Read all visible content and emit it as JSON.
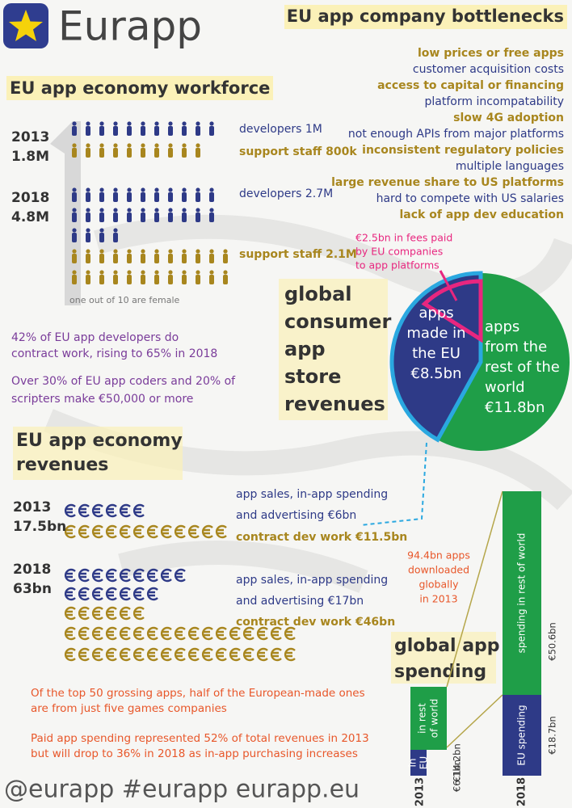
{
  "header": {
    "logo_text": "Eurapp"
  },
  "bottlenecks": {
    "title": "EU app company bottlenecks",
    "items": [
      "low prices or free apps",
      "customer acquisition costs",
      "access to capital or financing",
      "platform incompatability",
      "slow 4G adoption",
      "not enough APIs from major platforms",
      "inconsistent regulatory policies",
      "multiple languages",
      "large revenue share to US platforms",
      "hard to compete with US salaries",
      "lack of app dev education"
    ]
  },
  "workforce": {
    "title": "EU app economy workforce",
    "years": [
      {
        "year": "2013",
        "total": "1.8M",
        "developers": "developers 1M",
        "support": "support staff 800k"
      },
      {
        "year": "2018",
        "total": "4.8M",
        "developers": "developers 2.7M",
        "support": "support staff 2.1M"
      }
    ],
    "female_note": "one out of 10 are female",
    "notes": [
      [
        "42% of EU app developers do",
        "contract work, rising to 65% in 2018"
      ],
      [
        "Over 30% of EU app coders and 20% of",
        "scripters make €50,000 or more"
      ]
    ]
  },
  "revenues": {
    "title": [
      "EU app economy",
      "revenues"
    ],
    "years": [
      {
        "year": "2013",
        "total": "17.5bn",
        "sales": [
          "app sales, in-app spending",
          "and advertising €6bn"
        ],
        "contract": "contract dev work €11.5bn"
      },
      {
        "year": "2018",
        "total": "63bn",
        "sales": [
          "app sales, in-app spending",
          "and advertising €17bn"
        ],
        "contract": "contract dev work €46bn"
      }
    ],
    "notes": [
      [
        "Of the top 50 grossing apps, half of the European-made ones",
        "are from just five games companies"
      ],
      [
        "Paid app spending represented 52% of total revenues in 2013",
        "but will drop to 36% in 2018 as in-app purchasing increases"
      ]
    ]
  },
  "store_revenues": {
    "title": [
      "global",
      "consumer",
      "app",
      "store",
      "revenues"
    ],
    "eu": [
      "apps",
      "made in",
      "the EU",
      "€8.5bn"
    ],
    "rest": [
      "apps",
      "from the",
      "rest of the",
      "world",
      "€11.8bn"
    ],
    "fees": [
      "€2.5bn in fees paid",
      "by EU companies",
      "to app platforms"
    ]
  },
  "spending": {
    "title": [
      "global app",
      "spending"
    ],
    "downloads": [
      "94.4bn apps",
      "downloaded",
      "globally",
      "in 2013"
    ],
    "bars": [
      {
        "year": "2013",
        "eu_label": [
          "in",
          "EU"
        ],
        "rest_label": [
          "in rest",
          "of world"
        ],
        "eu_value": "€6.1bn",
        "rest_value": "€14.2bn"
      },
      {
        "year": "2018",
        "eu_label": [
          "EU spending"
        ],
        "rest_label": [
          "spending in rest of world"
        ],
        "eu_value": "€18.7bn",
        "rest_value": "€50.6bn"
      }
    ]
  },
  "footer": "@eurapp #eurapp eurapp.eu"
}
